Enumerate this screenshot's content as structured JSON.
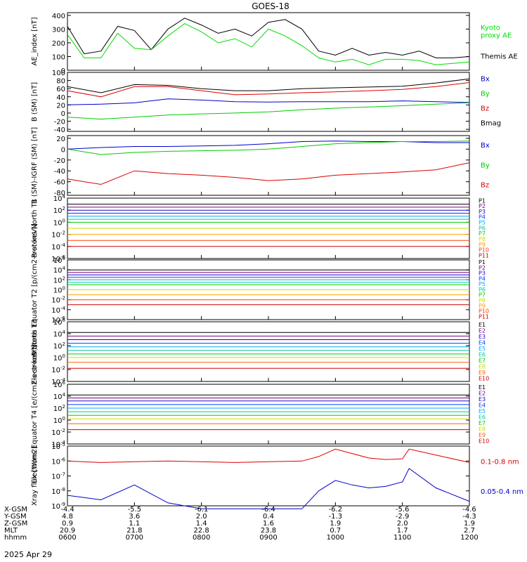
{
  "figure": {
    "title": "GOES-18",
    "date": "2025 Apr 29"
  },
  "chart_data": [
    {
      "type": "line",
      "title": "GOES-18",
      "ylabel": "AE_index [nT]",
      "ylim": [
        0,
        420
      ],
      "yticks": [
        {
          "v": 0,
          "label": "0"
        },
        {
          "v": 100,
          "label": "100"
        },
        {
          "v": 200,
          "label": "200"
        },
        {
          "v": 300,
          "label": "300"
        },
        {
          "v": 400,
          "label": "400"
        }
      ],
      "legend": [
        {
          "label": "Kyoto\nproxy AE",
          "color": "#00dd00"
        },
        {
          "label": "Themis AE",
          "color": "#000000"
        }
      ],
      "x": [
        6.0,
        6.25,
        6.5,
        6.75,
        7.0,
        7.25,
        7.5,
        7.75,
        8.0,
        8.25,
        8.5,
        8.75,
        9.0,
        9.25,
        9.5,
        9.75,
        10.0,
        10.25,
        10.5,
        10.75,
        11.0,
        11.25,
        11.5,
        11.75,
        12.0
      ],
      "series": [
        {
          "name": "Themis AE",
          "color": "#000000",
          "values": [
            320,
            120,
            140,
            320,
            290,
            150,
            300,
            380,
            330,
            270,
            300,
            250,
            350,
            370,
            300,
            140,
            110,
            160,
            110,
            130,
            110,
            140,
            90,
            90,
            100
          ]
        },
        {
          "name": "Kyoto proxy AE",
          "color": "#00dd00",
          "values": [
            260,
            90,
            90,
            270,
            160,
            150,
            250,
            340,
            280,
            200,
            230,
            170,
            300,
            250,
            180,
            90,
            60,
            80,
            40,
            80,
            80,
            70,
            40,
            50,
            60
          ]
        }
      ]
    },
    {
      "type": "line",
      "ylabel": "B (SM) [nT]",
      "ylim": [
        -45,
        100
      ],
      "yticks": [
        {
          "v": -40,
          "label": "-40"
        },
        {
          "v": -20,
          "label": "-20"
        },
        {
          "v": 0,
          "label": "0"
        },
        {
          "v": 20,
          "label": "20"
        },
        {
          "v": 40,
          "label": "40"
        },
        {
          "v": 60,
          "label": "60"
        },
        {
          "v": 80,
          "label": "80"
        },
        {
          "v": 100,
          "label": "100"
        }
      ],
      "legend": [
        {
          "label": "Bx",
          "color": "#0000cc"
        },
        {
          "label": "By",
          "color": "#00cc00"
        },
        {
          "label": "Bz",
          "color": "#dd0000"
        },
        {
          "label": "Bmag",
          "color": "#000000"
        }
      ],
      "x": [
        6.0,
        6.5,
        7.0,
        7.5,
        8.0,
        8.5,
        9.0,
        9.5,
        10.0,
        10.5,
        11.0,
        11.5,
        12.0
      ],
      "series": [
        {
          "name": "Bmag",
          "color": "#000000",
          "values": [
            65,
            50,
            70,
            68,
            60,
            55,
            55,
            60,
            62,
            64,
            66,
            74,
            84
          ]
        },
        {
          "name": "Bz",
          "color": "#dd0000",
          "values": [
            55,
            40,
            65,
            65,
            55,
            45,
            47,
            50,
            52,
            55,
            58,
            65,
            75
          ]
        },
        {
          "name": "Bx",
          "color": "#0000cc",
          "values": [
            20,
            22,
            25,
            35,
            32,
            28,
            27,
            28,
            28,
            28,
            30,
            28,
            26
          ]
        },
        {
          "name": "By",
          "color": "#00cc00",
          "values": [
            -10,
            -15,
            -10,
            -5,
            -2,
            0,
            3,
            8,
            12,
            15,
            18,
            22,
            25
          ]
        }
      ]
    },
    {
      "type": "line",
      "ylabel": "B (SM)-IGRF (SM) [nT]",
      "ylim": [
        -85,
        25
      ],
      "yticks": [
        {
          "v": -80,
          "label": "-80"
        },
        {
          "v": -60,
          "label": "-60"
        },
        {
          "v": -40,
          "label": "-40"
        },
        {
          "v": -20,
          "label": "-20"
        },
        {
          "v": 0,
          "label": "0"
        },
        {
          "v": 20,
          "label": "20"
        }
      ],
      "legend": [
        {
          "label": "Bx",
          "color": "#0000cc"
        },
        {
          "label": "By",
          "color": "#00cc00"
        },
        {
          "label": "Bz",
          "color": "#dd0000"
        }
      ],
      "x": [
        6.0,
        6.5,
        7.0,
        7.5,
        8.0,
        8.5,
        9.0,
        9.5,
        10.0,
        10.5,
        11.0,
        11.5,
        12.0
      ],
      "series": [
        {
          "name": "Bx",
          "color": "#0000cc",
          "values": [
            0,
            3,
            5,
            5,
            6,
            7,
            10,
            14,
            15,
            14,
            14,
            12,
            12
          ]
        },
        {
          "name": "By",
          "color": "#00cc00",
          "values": [
            0,
            -10,
            -6,
            -4,
            -3,
            -2,
            0,
            5,
            10,
            12,
            14,
            14,
            15
          ]
        },
        {
          "name": "Bz",
          "color": "#dd0000",
          "values": [
            -55,
            -65,
            -40,
            -45,
            -48,
            -52,
            -58,
            -55,
            -48,
            -45,
            -42,
            -38,
            -25
          ]
        }
      ]
    },
    {
      "type": "line",
      "ylabel": "Protons North T1",
      "ylim": [
        -6,
        4
      ],
      "yticks": [
        {
          "v": 4,
          "label": "10^4"
        },
        {
          "v": 2,
          "label": "10^2"
        },
        {
          "v": 0,
          "label": "10^0"
        },
        {
          "v": -2,
          "label": "10^-2"
        },
        {
          "v": -4,
          "label": "10^-4"
        },
        {
          "v": -6,
          "label": "10^-6"
        }
      ],
      "legend": [
        {
          "label": "P1",
          "color": "#000000"
        },
        {
          "label": "P2",
          "color": "#7a0080"
        },
        {
          "label": "P3",
          "color": "#2a00c8"
        },
        {
          "label": "P4",
          "color": "#0040ff"
        },
        {
          "label": "P5",
          "color": "#00a8ff"
        },
        {
          "label": "P6",
          "color": "#00c8a0"
        },
        {
          "label": "P7",
          "color": "#00d000"
        },
        {
          "label": "P8",
          "color": "#c8e000"
        },
        {
          "label": "P9",
          "color": "#ffa000"
        },
        {
          "label": "P10",
          "color": "#ff4000"
        },
        {
          "label": "P11",
          "color": "#cc0000"
        }
      ],
      "series_levels": [
        3.0,
        2.5,
        2.0,
        1.5,
        1.0,
        0.5,
        0.0,
        -1.0,
        -2.0,
        -3.0,
        -4.0
      ]
    },
    {
      "type": "line",
      "ylabel": "Protons Equator T2 [p/(cm2-s-sr-keV)]",
      "ylim": [
        -6,
        6
      ],
      "yticks": [
        {
          "v": 6,
          "label": "10^6"
        },
        {
          "v": 4,
          "label": "10^4"
        },
        {
          "v": 2,
          "label": "10^2"
        },
        {
          "v": 0,
          "label": "10^0"
        },
        {
          "v": -2,
          "label": "10^-2"
        },
        {
          "v": -4,
          "label": "10^-4"
        },
        {
          "v": -6,
          "label": "10^-6"
        }
      ],
      "legend": [
        {
          "label": "P1",
          "color": "#000000"
        },
        {
          "label": "P2",
          "color": "#7a0080"
        },
        {
          "label": "P3",
          "color": "#2a00c8"
        },
        {
          "label": "P4",
          "color": "#0040ff"
        },
        {
          "label": "P5",
          "color": "#00a8ff"
        },
        {
          "label": "P6",
          "color": "#00c8a0"
        },
        {
          "label": "P7",
          "color": "#00d000"
        },
        {
          "label": "P8",
          "color": "#c8e000"
        },
        {
          "label": "P9",
          "color": "#ffa000"
        },
        {
          "label": "P10",
          "color": "#ff4000"
        },
        {
          "label": "P11",
          "color": "#cc0000"
        }
      ],
      "series_levels": [
        4.0,
        3.5,
        3.0,
        2.5,
        2.0,
        1.5,
        1.0,
        0.0,
        -1.0,
        -2.0,
        -3.0
      ]
    },
    {
      "type": "line",
      "ylabel": "Electrons North T3",
      "ylim": [
        -4,
        6
      ],
      "yticks": [
        {
          "v": 6,
          "label": "10^6"
        },
        {
          "v": 4,
          "label": "10^4"
        },
        {
          "v": 2,
          "label": "10^2"
        },
        {
          "v": 0,
          "label": "10^0"
        },
        {
          "v": -2,
          "label": "10^-2"
        },
        {
          "v": -4,
          "label": "10^-4"
        }
      ],
      "legend": [
        {
          "label": "E1",
          "color": "#000000"
        },
        {
          "label": "E2",
          "color": "#7a0080"
        },
        {
          "label": "E3",
          "color": "#2a00c8"
        },
        {
          "label": "E4",
          "color": "#0040ff"
        },
        {
          "label": "E5",
          "color": "#00a8ff"
        },
        {
          "label": "E6",
          "color": "#00c8a0"
        },
        {
          "label": "E7",
          "color": "#00d000"
        },
        {
          "label": "E8",
          "color": "#c8e000"
        },
        {
          "label": "E9",
          "color": "#ff6000"
        },
        {
          "label": "E10",
          "color": "#cc0000"
        }
      ],
      "series_levels": [
        4.2,
        3.6,
        3.0,
        2.4,
        1.8,
        1.2,
        0.6,
        0.0,
        -0.8,
        -1.8
      ]
    },
    {
      "type": "line",
      "ylabel": "Electrons Equator T4 [e/(cm2-s-sr-keV)]",
      "ylim": [
        -4,
        6
      ],
      "yticks": [
        {
          "v": 6,
          "label": "10^6"
        },
        {
          "v": 4,
          "label": "10^4"
        },
        {
          "v": 2,
          "label": "10^2"
        },
        {
          "v": 0,
          "label": "10^0"
        },
        {
          "v": -2,
          "label": "10^-2"
        },
        {
          "v": -4,
          "label": "10^-4"
        }
      ],
      "legend": [
        {
          "label": "E1",
          "color": "#000000"
        },
        {
          "label": "E2",
          "color": "#7a0080"
        },
        {
          "label": "E3",
          "color": "#2a00c8"
        },
        {
          "label": "E4",
          "color": "#0040ff"
        },
        {
          "label": "E5",
          "color": "#00a8ff"
        },
        {
          "label": "E6",
          "color": "#00c8a0"
        },
        {
          "label": "E7",
          "color": "#00d000"
        },
        {
          "label": "E8",
          "color": "#c8e000"
        },
        {
          "label": "E9",
          "color": "#ff6000"
        },
        {
          "label": "E10",
          "color": "#cc0000"
        }
      ],
      "series_levels": [
        4.2,
        3.7,
        3.2,
        2.6,
        2.0,
        1.4,
        0.8,
        0.2,
        -0.6,
        -1.6
      ]
    },
    {
      "type": "line",
      "ylabel": "Xray flux [W/m2]",
      "ylim": [
        -9,
        -5
      ],
      "yticks": [
        {
          "v": -5,
          "label": "10^-5"
        },
        {
          "v": -6,
          "label": "10^-6"
        },
        {
          "v": -7,
          "label": "10^-7"
        },
        {
          "v": -8,
          "label": "10^-8"
        },
        {
          "v": -9,
          "label": "10^-9"
        }
      ],
      "legend": [
        {
          "label": "0.1-0.8 nm",
          "color": "#dd0000"
        },
        {
          "label": "0.05-0.4 nm",
          "color": "#0000cc"
        }
      ],
      "x": [
        6.0,
        6.5,
        7.0,
        7.5,
        8.0,
        8.5,
        9.0,
        9.5,
        9.75,
        10.0,
        10.25,
        10.5,
        10.75,
        11.0,
        11.1,
        11.5,
        12.0
      ],
      "series": [
        {
          "name": "0.1-0.8 nm",
          "color": "#dd0000",
          "values": [
            -6.0,
            -6.1,
            -6.05,
            -6.0,
            -6.05,
            -6.1,
            -6.05,
            -6.0,
            -5.7,
            -5.2,
            -5.5,
            -5.8,
            -5.9,
            -5.85,
            -5.2,
            -5.6,
            -6.1
          ]
        },
        {
          "name": "0.05-0.4 nm",
          "color": "#0000cc",
          "values": [
            -8.3,
            -8.6,
            -7.6,
            -8.8,
            -9.2,
            -9.2,
            -9.2,
            -9.2,
            -8.0,
            -7.3,
            -7.6,
            -7.8,
            -7.7,
            -7.4,
            -6.5,
            -7.8,
            -8.7
          ]
        }
      ]
    }
  ],
  "x_axis": {
    "row_labels": [
      "X-GSM",
      "Y-GSM",
      "Z-GSM",
      "MLT",
      "hhmm"
    ],
    "columns": [
      [
        "-4.4",
        "4.8",
        "0.9",
        "20.9",
        "0600"
      ],
      [
        "-5.5",
        "3.6",
        "1.1",
        "21.8",
        "0700"
      ],
      [
        "-6.1",
        "2.0",
        "1.4",
        "22.8",
        "0800"
      ],
      [
        "-6.4",
        "0.4",
        "1.6",
        "23.8",
        "0900"
      ],
      [
        "-6.2",
        "-1.3",
        "1.9",
        "0.7",
        "1000"
      ],
      [
        "-5.6",
        "-2.9",
        "2.0",
        "1.7",
        "1100"
      ],
      [
        "-4.6",
        "-4.3",
        "1.9",
        "2.7",
        "1200"
      ]
    ],
    "hours": [
      6,
      7,
      8,
      9,
      10,
      11,
      12
    ]
  },
  "colors": {
    "axis": "#000000",
    "background": "#ffffff"
  }
}
